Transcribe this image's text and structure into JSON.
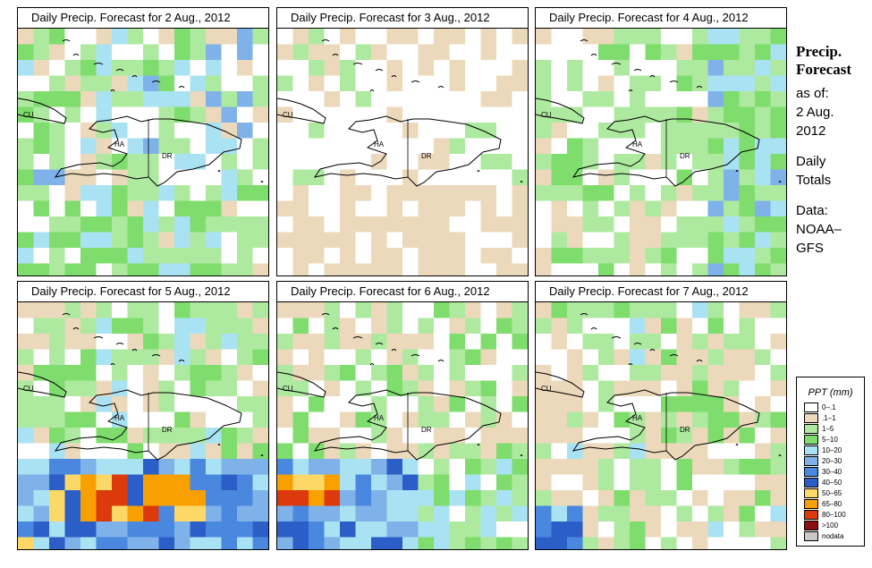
{
  "panels": [
    {
      "title": "Daily Precip. Forecast for  2 Aug., 2012"
    },
    {
      "title": "Daily Precip. Forecast for  3 Aug., 2012"
    },
    {
      "title": "Daily Precip. Forecast for  4 Aug., 2012"
    },
    {
      "title": "Daily Precip. Forecast for  5 Aug., 2012"
    },
    {
      "title": "Daily Precip. Forecast for  6 Aug., 2012"
    },
    {
      "title": "Daily Precip. Forecast for  7 Aug., 2012"
    }
  ],
  "map_labels": {
    "cuba": "CU",
    "haiti": "HA",
    "dominican_republic": "DR"
  },
  "sidebar": {
    "heading_line1": "Precip.",
    "heading_line2": "Forecast",
    "as_of": "as of:",
    "date_line1": "2 Aug.",
    "date_line2": "2012",
    "totals_line1": "Daily",
    "totals_line2": "Totals",
    "data_line1": "Data:",
    "data_line2": "NOAA–",
    "data_line3": "GFS"
  },
  "legend": {
    "title": "PPT (mm)",
    "items": [
      {
        "label": "0–.1",
        "color": "#ffffff"
      },
      {
        "label": ".1–1",
        "color": "#ecd9bb"
      },
      {
        "label": "1–5",
        "color": "#aee9a0"
      },
      {
        "label": "5–10",
        "color": "#7fdd6e"
      },
      {
        "label": "10–20",
        "color": "#a9e2f2"
      },
      {
        "label": "20–30",
        "color": "#7fb2e9"
      },
      {
        "label": "30–40",
        "color": "#4a88e0"
      },
      {
        "label": "40–50",
        "color": "#2c5ec8"
      },
      {
        "label": "50–65",
        "color": "#fcd867"
      },
      {
        "label": "65–80",
        "color": "#f8a000"
      },
      {
        "label": "80–100",
        "color": "#dc3a0c"
      },
      {
        "label": ">100",
        "color": "#8c1010"
      },
      {
        "label": "nodata",
        "color": "#c8c8c8"
      }
    ]
  }
}
